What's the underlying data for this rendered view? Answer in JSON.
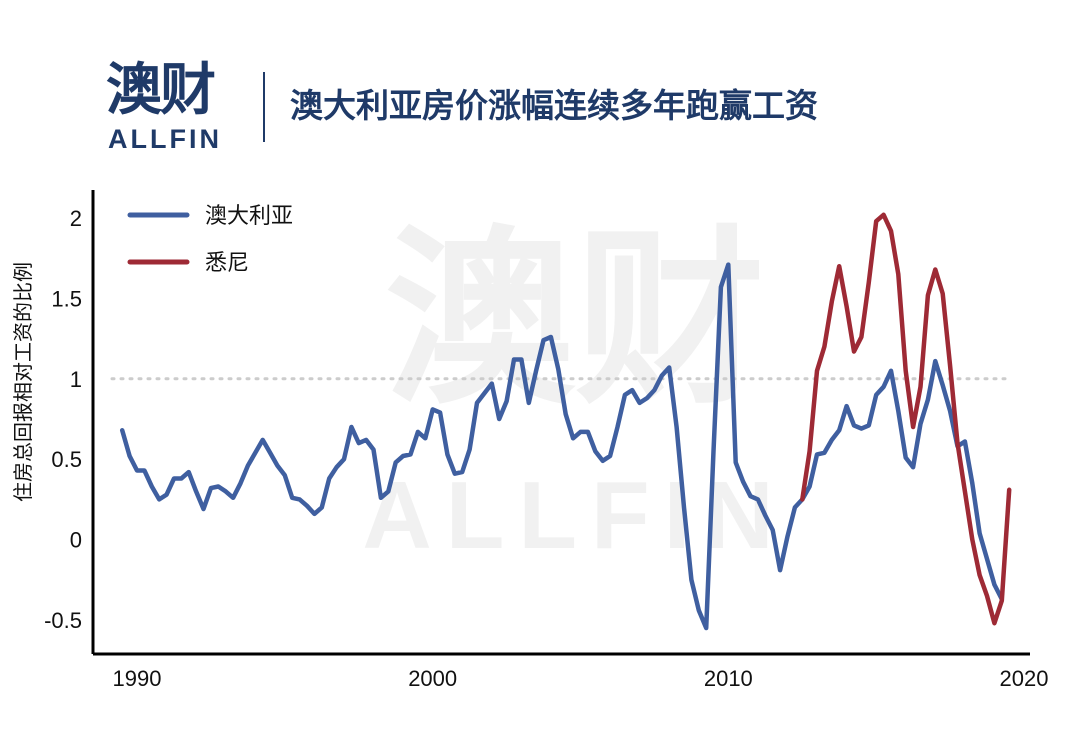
{
  "brand": {
    "name_cn": "澳财",
    "name_en": "ALLFIN"
  },
  "title": "澳大利亚房价涨幅连续多年跑赢工资",
  "colors": {
    "australia": "#3f5fa0",
    "sydney": "#9e2a35",
    "brand": "#1f3a68",
    "reference": "#cccccc"
  },
  "chart_data": {
    "type": "line",
    "ylabel": "住房总回报相对工资的比例",
    "xlim": [
      1988.5,
      2020
    ],
    "ylim": [
      -0.7,
      2.2
    ],
    "x_ticks": [
      1990,
      2000,
      2010,
      2020
    ],
    "y_ticks": [
      2,
      1.5,
      1,
      0.5,
      0,
      -0.5
    ],
    "y_tick_labels": [
      "2",
      "1.5",
      "1",
      "0.5",
      "0",
      "-0.5"
    ],
    "reference_line": 1,
    "legend_position": "top-left",
    "series": [
      {
        "name": "澳大利亚",
        "color": "#3f5fa0",
        "points": [
          [
            1989.5,
            0.68
          ],
          [
            1989.75,
            0.52
          ],
          [
            1990.0,
            0.43
          ],
          [
            1990.25,
            0.43
          ],
          [
            1990.5,
            0.33
          ],
          [
            1990.75,
            0.25
          ],
          [
            1991.0,
            0.28
          ],
          [
            1991.25,
            0.38
          ],
          [
            1991.5,
            0.38
          ],
          [
            1991.75,
            0.42
          ],
          [
            1992.0,
            0.3
          ],
          [
            1992.25,
            0.19
          ],
          [
            1992.5,
            0.32
          ],
          [
            1992.75,
            0.33
          ],
          [
            1993.0,
            0.3
          ],
          [
            1993.25,
            0.26
          ],
          [
            1993.5,
            0.35
          ],
          [
            1993.75,
            0.46
          ],
          [
            1994.0,
            0.54
          ],
          [
            1994.25,
            0.62
          ],
          [
            1994.5,
            0.54
          ],
          [
            1994.75,
            0.46
          ],
          [
            1995.0,
            0.4
          ],
          [
            1995.25,
            0.26
          ],
          [
            1995.5,
            0.25
          ],
          [
            1995.75,
            0.21
          ],
          [
            1996.0,
            0.16
          ],
          [
            1996.25,
            0.2
          ],
          [
            1996.5,
            0.38
          ],
          [
            1996.75,
            0.45
          ],
          [
            1997.0,
            0.5
          ],
          [
            1997.25,
            0.7
          ],
          [
            1997.5,
            0.6
          ],
          [
            1997.75,
            0.62
          ],
          [
            1998.0,
            0.56
          ],
          [
            1998.25,
            0.26
          ],
          [
            1998.5,
            0.3
          ],
          [
            1998.75,
            0.48
          ],
          [
            1999.0,
            0.52
          ],
          [
            1999.25,
            0.53
          ],
          [
            1999.5,
            0.67
          ],
          [
            1999.75,
            0.63
          ],
          [
            2000.0,
            0.81
          ],
          [
            2000.25,
            0.79
          ],
          [
            2000.5,
            0.53
          ],
          [
            2000.75,
            0.41
          ],
          [
            2001.0,
            0.42
          ],
          [
            2001.25,
            0.56
          ],
          [
            2001.5,
            0.85
          ],
          [
            2001.75,
            0.91
          ],
          [
            2002.0,
            0.97
          ],
          [
            2002.25,
            0.75
          ],
          [
            2002.5,
            0.86
          ],
          [
            2002.75,
            1.12
          ],
          [
            2003.0,
            1.12
          ],
          [
            2003.25,
            0.85
          ],
          [
            2003.5,
            1.05
          ],
          [
            2003.75,
            1.24
          ],
          [
            2004.0,
            1.26
          ],
          [
            2004.25,
            1.06
          ],
          [
            2004.5,
            0.78
          ],
          [
            2004.75,
            0.63
          ],
          [
            2005.0,
            0.67
          ],
          [
            2005.25,
            0.67
          ],
          [
            2005.5,
            0.55
          ],
          [
            2005.75,
            0.49
          ],
          [
            2006.0,
            0.52
          ],
          [
            2006.25,
            0.7
          ],
          [
            2006.5,
            0.9
          ],
          [
            2006.75,
            0.93
          ],
          [
            2007.0,
            0.85
          ],
          [
            2007.25,
            0.88
          ],
          [
            2007.5,
            0.93
          ],
          [
            2007.75,
            1.02
          ],
          [
            2008.0,
            1.07
          ],
          [
            2008.25,
            0.7
          ],
          [
            2008.5,
            0.2
          ],
          [
            2008.75,
            -0.25
          ],
          [
            2009.0,
            -0.44
          ],
          [
            2009.25,
            -0.55
          ],
          [
            2009.5,
            0.55
          ],
          [
            2009.75,
            1.57
          ],
          [
            2010.0,
            1.71
          ],
          [
            2010.25,
            0.48
          ],
          [
            2010.5,
            0.36
          ],
          [
            2010.75,
            0.27
          ],
          [
            2011.0,
            0.25
          ],
          [
            2011.25,
            0.15
          ],
          [
            2011.5,
            0.06
          ],
          [
            2011.75,
            -0.19
          ],
          [
            2012.0,
            0.02
          ],
          [
            2012.25,
            0.2
          ],
          [
            2012.5,
            0.25
          ],
          [
            2012.75,
            0.33
          ],
          [
            2013.0,
            0.53
          ],
          [
            2013.25,
            0.54
          ],
          [
            2013.5,
            0.62
          ],
          [
            2013.75,
            0.68
          ],
          [
            2014.0,
            0.83
          ],
          [
            2014.25,
            0.71
          ],
          [
            2014.5,
            0.69
          ],
          [
            2014.75,
            0.71
          ],
          [
            2015.0,
            0.9
          ],
          [
            2015.25,
            0.95
          ],
          [
            2015.5,
            1.05
          ],
          [
            2015.75,
            0.8
          ],
          [
            2016.0,
            0.51
          ],
          [
            2016.25,
            0.45
          ],
          [
            2016.5,
            0.72
          ],
          [
            2016.75,
            0.87
          ],
          [
            2017.0,
            1.11
          ],
          [
            2017.25,
            0.96
          ],
          [
            2017.5,
            0.8
          ],
          [
            2017.75,
            0.58
          ],
          [
            2018.0,
            0.61
          ],
          [
            2018.25,
            0.35
          ],
          [
            2018.5,
            0.04
          ],
          [
            2018.75,
            -0.12
          ],
          [
            2019.0,
            -0.28
          ],
          [
            2019.25,
            -0.37
          ]
        ]
      },
      {
        "name": "悉尼",
        "color": "#9e2a35",
        "points": [
          [
            2012.5,
            0.25
          ],
          [
            2012.75,
            0.55
          ],
          [
            2013.0,
            1.05
          ],
          [
            2013.25,
            1.2
          ],
          [
            2013.5,
            1.48
          ],
          [
            2013.75,
            1.7
          ],
          [
            2014.0,
            1.45
          ],
          [
            2014.25,
            1.17
          ],
          [
            2014.5,
            1.26
          ],
          [
            2014.75,
            1.6
          ],
          [
            2015.0,
            1.98
          ],
          [
            2015.25,
            2.02
          ],
          [
            2015.5,
            1.92
          ],
          [
            2015.75,
            1.65
          ],
          [
            2016.0,
            1.05
          ],
          [
            2016.25,
            0.7
          ],
          [
            2016.5,
            0.95
          ],
          [
            2016.75,
            1.52
          ],
          [
            2017.0,
            1.68
          ],
          [
            2017.25,
            1.53
          ],
          [
            2017.5,
            1.08
          ],
          [
            2017.75,
            0.6
          ],
          [
            2018.0,
            0.3
          ],
          [
            2018.25,
            0.0
          ],
          [
            2018.5,
            -0.22
          ],
          [
            2018.75,
            -0.35
          ],
          [
            2019.0,
            -0.52
          ],
          [
            2019.25,
            -0.38
          ],
          [
            2019.5,
            0.31
          ]
        ]
      }
    ]
  }
}
